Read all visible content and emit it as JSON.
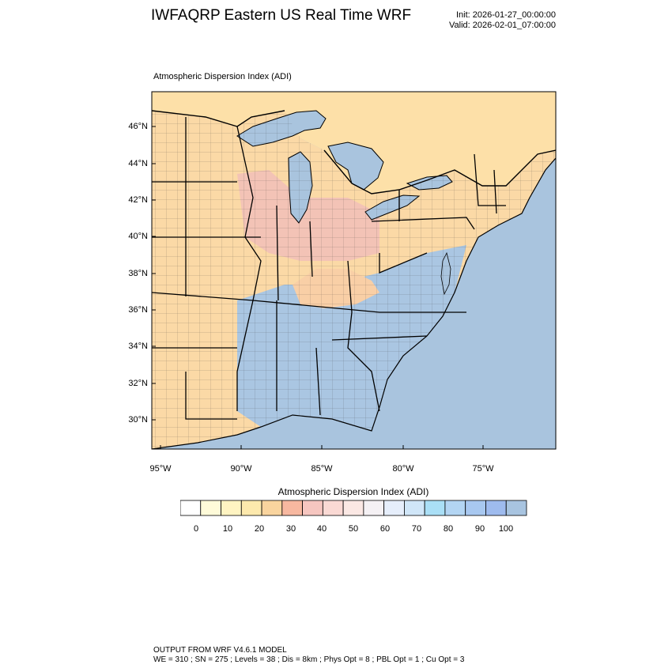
{
  "header": {
    "title": "IWFAQRP Eastern US Real Time WRF",
    "init": "Init: 2026-01-27_00:00:00",
    "valid": "Valid: 2026-02-01_07:00:00"
  },
  "map": {
    "title": "Atmospheric Dispersion Index   (ADI)",
    "lat_labels": [
      "46°N",
      "44°N",
      "42°N",
      "40°N",
      "38°N",
      "36°N",
      "34°N",
      "32°N",
      "30°N"
    ],
    "lon_labels": [
      "95°W",
      "90°W",
      "85°W",
      "80°W",
      "75°W"
    ],
    "colors": {
      "land_default": "#fbdca8",
      "ocean": "#a9c4de",
      "state_border": "#000000"
    }
  },
  "colorbar": {
    "title": "Atmospheric Dispersion Index  (ADI)",
    "labels": [
      "0",
      "10",
      "20",
      "30",
      "40",
      "50",
      "60",
      "70",
      "80",
      "90",
      "100"
    ],
    "colors": [
      "#ffffff",
      "#fffbd9",
      "#fff4c2",
      "#fde9ad",
      "#f9d49e",
      "#f7b8a0",
      "#f6c6c0",
      "#fad9d4",
      "#fbe8e4",
      "#f5f1f4",
      "#e6eefb",
      "#d0e6f8",
      "#aadff6",
      "#b3d5f3",
      "#a8c8f0",
      "#9ebbee",
      "#a8c4e0"
    ]
  },
  "footer": {
    "line1": "OUTPUT FROM WRF V4.6.1 MODEL",
    "line2": "WE = 310 ; SN = 275 ; Levels = 38 ; Dis = 8km ; Phys Opt = 8 ; PBL Opt = 1 ; Cu Opt = 3"
  }
}
